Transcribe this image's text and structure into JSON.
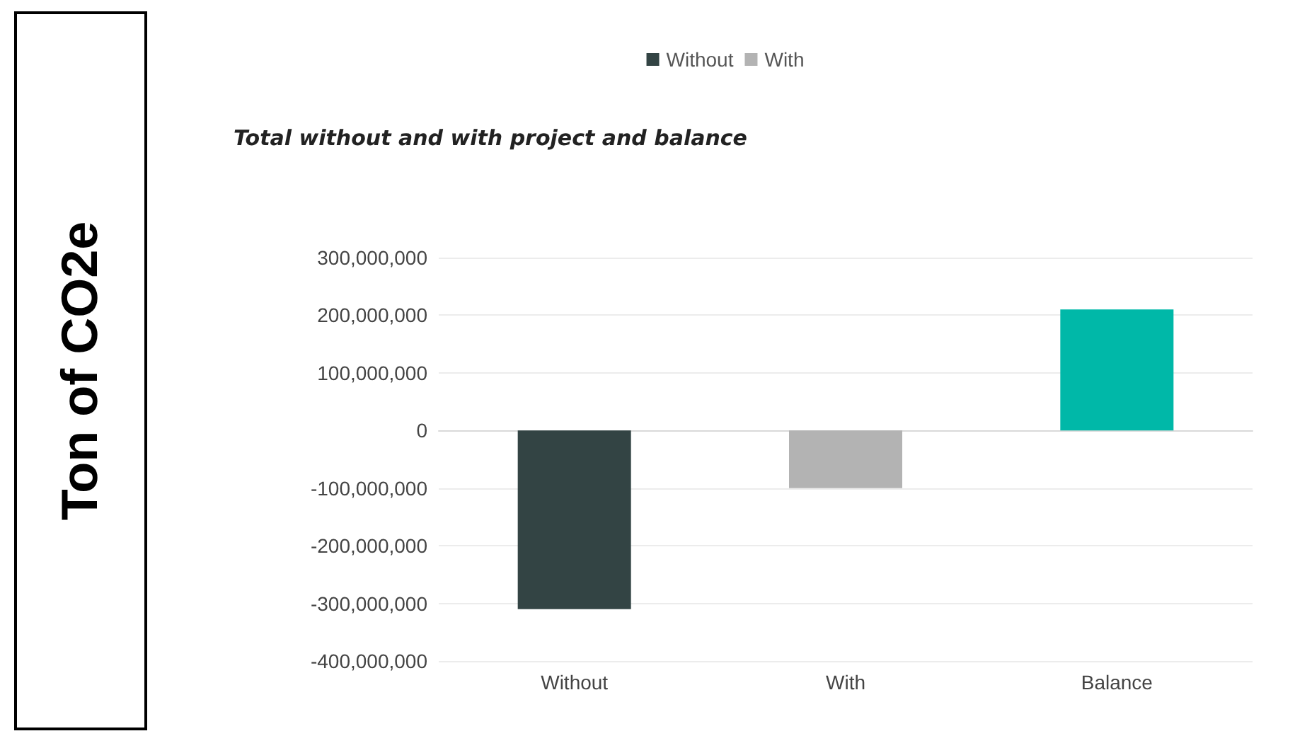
{
  "chart_data": {
    "type": "bar",
    "title": "Total without and with project and balance",
    "ylabel": "Ton of CO2e",
    "categories": [
      "Without",
      "With",
      "Balance"
    ],
    "series": [
      {
        "name": "Without",
        "color": "#334444",
        "values": [
          -310000000,
          null,
          null
        ]
      },
      {
        "name": "With",
        "color": "#b3b3b3",
        "values": [
          null,
          -100000000,
          null
        ]
      },
      {
        "color": "#00b8a8",
        "values": [
          null,
          null,
          210000000
        ]
      }
    ],
    "ylim": [
      -400000000,
      300000000
    ],
    "yticks": [
      {
        "value": -400000000,
        "label": "-400,000,000"
      },
      {
        "value": -300000000,
        "label": "-300,000,000"
      },
      {
        "value": -200000000,
        "label": "-200,000,000"
      },
      {
        "value": -100000000,
        "label": "-100,000,000"
      },
      {
        "value": 0,
        "label": "0"
      },
      {
        "value": 100000000,
        "label": "100,000,000"
      },
      {
        "value": 200000000,
        "label": "200,000,000"
      },
      {
        "value": 300000000,
        "label": "300,000,000"
      }
    ],
    "grid": "y",
    "legend": "top"
  }
}
